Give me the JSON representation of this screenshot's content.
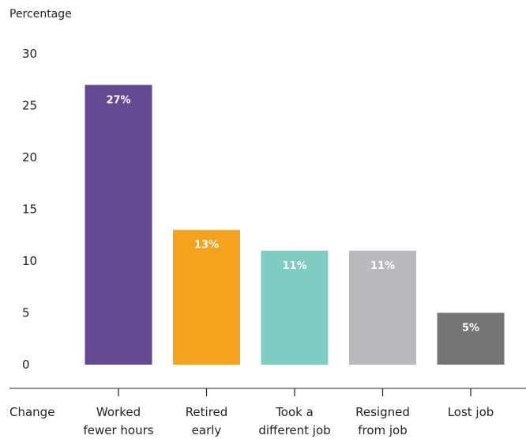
{
  "chart_data": {
    "type": "bar",
    "title": "",
    "ylabel": "Percentage",
    "xlabel": "Change",
    "ylim": [
      0,
      30
    ],
    "yticks": [
      0,
      5,
      10,
      15,
      20,
      25,
      30
    ],
    "grid": false,
    "categories": [
      [
        "Worked",
        "fewer hours"
      ],
      [
        "Retired",
        "early"
      ],
      [
        "Took a",
        "different job"
      ],
      [
        "Resigned",
        "from job"
      ],
      [
        "Lost job"
      ]
    ],
    "values": [
      27,
      13,
      11,
      11,
      5
    ],
    "data_labels": [
      "27%",
      "13%",
      "11%",
      "11%",
      "5%"
    ],
    "colors": [
      "#634a93",
      "#f5a21e",
      "#7fccc3",
      "#b9b9be",
      "#757577"
    ]
  }
}
